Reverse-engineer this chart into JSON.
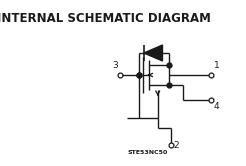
{
  "title": "INTERNAL SCHEMATIC DIAGRAM",
  "title_fontsize": 8.5,
  "title_fontweight": "bold",
  "bg_color": "#ffffff",
  "line_color": "#1a1a1a",
  "part_number": "STE53NC50",
  "pin1_label": "1",
  "pin2_label": "2",
  "pin3_label": "3",
  "pin4_label": "4"
}
